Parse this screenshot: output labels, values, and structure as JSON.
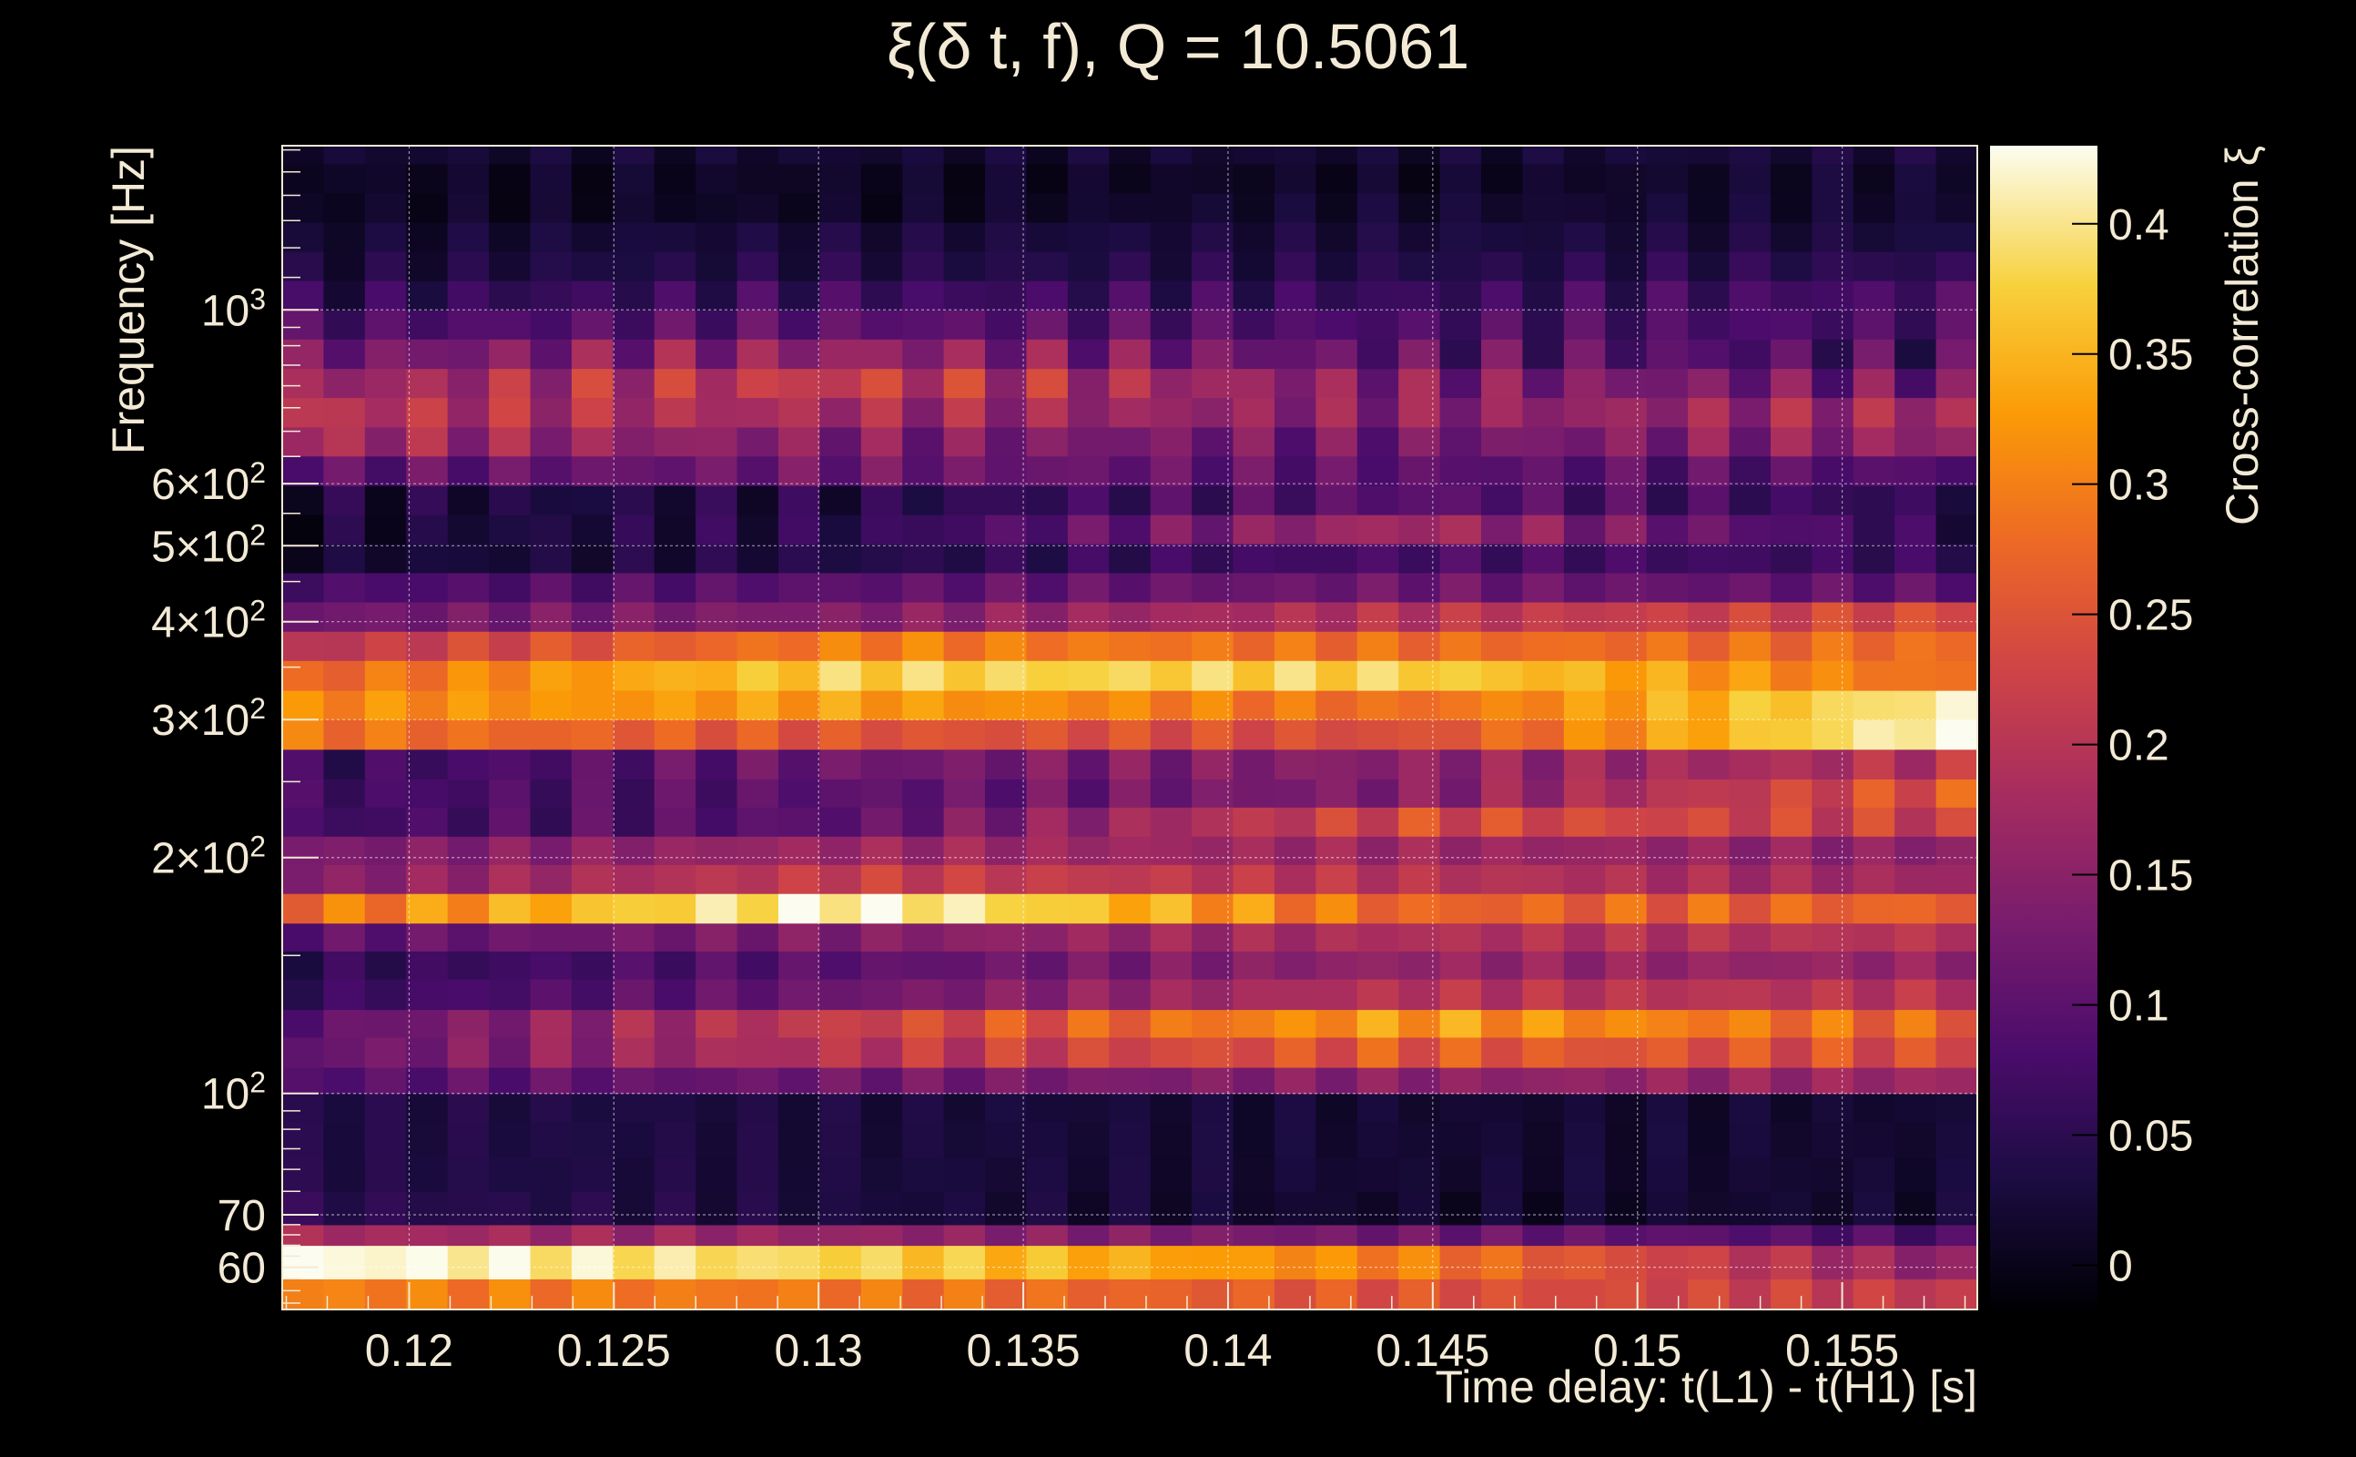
{
  "chart_data": {
    "type": "heatmap",
    "title": "ξ(δ t, f), Q = 10.5061",
    "xlabel": "Time delay: t(L1) - t(H1) [s]",
    "ylabel": "Frequency [Hz]",
    "colorbar_label": "Cross-correlation ξ",
    "y_scale": "log",
    "grid": true,
    "colormap": "inferno",
    "xlim": [
      0.1169,
      0.1583
    ],
    "ylim": [
      53,
      1620
    ],
    "zlim": [
      -0.017,
      0.43
    ],
    "x_ticks": [
      {
        "value": 0.12,
        "label": "0.12"
      },
      {
        "value": 0.125,
        "label": "0.125"
      },
      {
        "value": 0.13,
        "label": "0.13"
      },
      {
        "value": 0.135,
        "label": "0.135"
      },
      {
        "value": 0.14,
        "label": "0.14"
      },
      {
        "value": 0.145,
        "label": "0.145"
      },
      {
        "value": 0.15,
        "label": "0.15"
      },
      {
        "value": 0.155,
        "label": "0.155"
      }
    ],
    "y_ticks": [
      {
        "value": 60,
        "label": "60",
        "exp": ""
      },
      {
        "value": 70,
        "label": "70",
        "exp": ""
      },
      {
        "value": 100,
        "label": "10",
        "exp": "2"
      },
      {
        "value": 200,
        "label": "2×10",
        "exp": "2"
      },
      {
        "value": 300,
        "label": "3×10",
        "exp": "2"
      },
      {
        "value": 400,
        "label": "4×10",
        "exp": "2"
      },
      {
        "value": 500,
        "label": "5×10",
        "exp": "2"
      },
      {
        "value": 600,
        "label": "6×10",
        "exp": "2"
      },
      {
        "value": 1000,
        "label": "10",
        "exp": "3"
      }
    ],
    "colorbar_ticks": [
      {
        "value": 0,
        "label": "0"
      },
      {
        "value": 0.05,
        "label": "0.05"
      },
      {
        "value": 0.1,
        "label": "0.1"
      },
      {
        "value": 0.15,
        "label": "0.15"
      },
      {
        "value": 0.2,
        "label": "0.2"
      },
      {
        "value": 0.25,
        "label": "0.25"
      },
      {
        "value": 0.3,
        "label": "0.3"
      },
      {
        "value": 0.35,
        "label": "0.35"
      },
      {
        "value": 0.4,
        "label": "0.4"
      }
    ],
    "n_time_bins": 41,
    "freq_edges": [
      53,
      58,
      64,
      68,
      75,
      83,
      92,
      100,
      108,
      118,
      128,
      140,
      152,
      165,
      180,
      196,
      213,
      232,
      252,
      275,
      300,
      327,
      357,
      389,
      424,
      462,
      503,
      548,
      597,
      651,
      709,
      773,
      842,
      918,
      1000,
      1090,
      1188,
      1294,
      1410,
      1537,
      1620
    ],
    "rows": [
      {
        "v": [
          0.3,
          0.29,
          0.25,
          0.21
        ],
        "n": 0.02
      },
      {
        "v": [
          0.43,
          0.38,
          0.3,
          0.15
        ],
        "n": 0.02
      },
      {
        "v": [
          0.18,
          0.16,
          0.12,
          0.08
        ],
        "n": 0.02
      },
      {
        "v": [
          0.05,
          0.03,
          0.015,
          0.02
        ],
        "n": 0.015
      },
      {
        "v": [
          0.04,
          0.03,
          0.02,
          0.02
        ],
        "n": 0.012
      },
      {
        "v": [
          0.04,
          0.03,
          0.02,
          0.02
        ],
        "n": 0.012
      },
      {
        "v": [
          0.04,
          0.03,
          0.02,
          0.02
        ],
        "n": 0.012
      },
      {
        "v": [
          0.09,
          0.12,
          0.15,
          0.17
        ],
        "n": 0.02
      },
      {
        "v": [
          0.11,
          0.2,
          0.26,
          0.24
        ],
        "n": 0.03
      },
      {
        "v": [
          0.1,
          0.22,
          0.33,
          0.27
        ],
        "n": 0.03
      },
      {
        "v": [
          0.06,
          0.12,
          0.2,
          0.2
        ],
        "n": 0.02
      },
      {
        "v": [
          0.05,
          0.1,
          0.16,
          0.16
        ],
        "n": 0.02
      },
      {
        "v": [
          0.1,
          0.14,
          0.19,
          0.2
        ],
        "n": 0.02
      },
      {
        "v": [
          0.28,
          0.43,
          0.27,
          0.27
        ],
        "n": 0.03
      },
      {
        "v": [
          0.14,
          0.22,
          0.2,
          0.17
        ],
        "n": 0.02
      },
      {
        "v": [
          0.13,
          0.17,
          0.17,
          0.15
        ],
        "n": 0.02
      },
      {
        "v": [
          0.07,
          0.1,
          0.24,
          0.22
        ],
        "n": 0.03
      },
      {
        "v": [
          0.07,
          0.1,
          0.14,
          0.26
        ],
        "n": 0.03
      },
      {
        "v": [
          0.06,
          0.12,
          0.15,
          0.2
        ],
        "n": 0.03
      },
      {
        "v": [
          0.29,
          0.25,
          0.24,
          0.43
        ],
        "n": 0.02
      },
      {
        "v": [
          0.31,
          0.33,
          0.28,
          0.41
        ],
        "n": 0.02
      },
      {
        "v": [
          0.27,
          0.38,
          0.38,
          0.28
        ],
        "n": 0.02
      },
      {
        "v": [
          0.2,
          0.3,
          0.28,
          0.28
        ],
        "n": 0.02
      },
      {
        "v": [
          0.12,
          0.14,
          0.2,
          0.24
        ],
        "n": 0.02
      },
      {
        "v": [
          0.08,
          0.1,
          0.12,
          0.1
        ],
        "n": 0.02
      },
      {
        "v": [
          0.02,
          0.04,
          0.08,
          0.06
        ],
        "n": 0.02
      },
      {
        "v": [
          0.02,
          0.05,
          0.18,
          0.05
        ],
        "n": 0.03
      },
      {
        "v": [
          0.03,
          0.04,
          0.1,
          0.05
        ],
        "n": 0.03
      },
      {
        "v": [
          0.1,
          0.12,
          0.1,
          0.09
        ],
        "n": 0.03
      },
      {
        "v": [
          0.18,
          0.14,
          0.12,
          0.16
        ],
        "n": 0.04
      },
      {
        "v": [
          0.2,
          0.18,
          0.15,
          0.18
        ],
        "n": 0.04
      },
      {
        "v": [
          0.16,
          0.22,
          0.14,
          0.12
        ],
        "n": 0.05
      },
      {
        "v": [
          0.12,
          0.16,
          0.1,
          0.08
        ],
        "n": 0.05
      },
      {
        "v": [
          0.08,
          0.1,
          0.08,
          0.08
        ],
        "n": 0.03
      },
      {
        "v": [
          0.05,
          0.07,
          0.06,
          0.08
        ],
        "n": 0.03
      },
      {
        "v": [
          0.03,
          0.04,
          0.04,
          0.05
        ],
        "n": 0.02
      },
      {
        "v": [
          0.02,
          0.03,
          0.03,
          0.03
        ],
        "n": 0.015
      },
      {
        "v": [
          0.01,
          0.01,
          0.02,
          0.02
        ],
        "n": 0.015
      },
      {
        "v": [
          0.01,
          0.01,
          0.01,
          0.02
        ],
        "n": 0.015
      },
      {
        "v": [
          0.02,
          0.02,
          0.02,
          0.03
        ],
        "n": 0.015
      }
    ]
  }
}
